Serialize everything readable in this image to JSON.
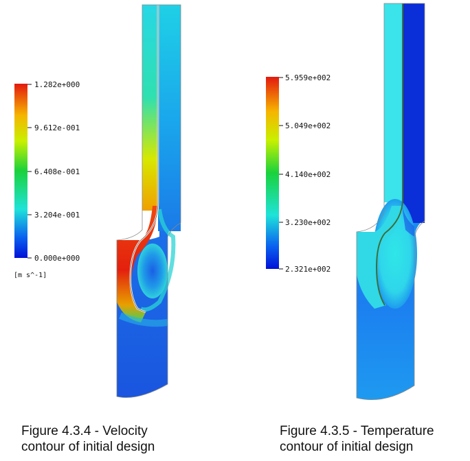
{
  "velocity": {
    "legend": {
      "values": [
        "1.282e+000",
        "9.612e-001",
        "6.408e-001",
        "3.204e-001",
        "0.000e+000"
      ],
      "unit": "[m s^-1]"
    },
    "caption": "Figure 4.3.4 -  Velocity\ncontour of initial design"
  },
  "temperature": {
    "legend": {
      "values": [
        "5.959e+002",
        "5.049e+002",
        "4.140e+002",
        "3.230e+002",
        "2.321e+002"
      ]
    },
    "caption": "Figure 4.3.5 - Temperature\ncontour of initial design"
  },
  "colors": {
    "scale": [
      "#e3190f",
      "#f6b400",
      "#c9f000",
      "#19d23c",
      "#1fe3d9",
      "#0a63f0",
      "#0011d8"
    ],
    "velocity_body": "#1f5fe6",
    "temperature_body": "#1e86ee",
    "hot_inlet": "#3be3ea",
    "cold_outlet": "#0a2ed8"
  }
}
